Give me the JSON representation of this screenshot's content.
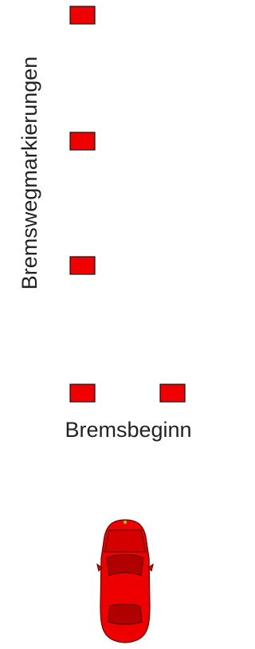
{
  "labels": {
    "braking_marks": "Bremswegmarkierungen",
    "braking_start": "Bremsbeginn"
  }
}
